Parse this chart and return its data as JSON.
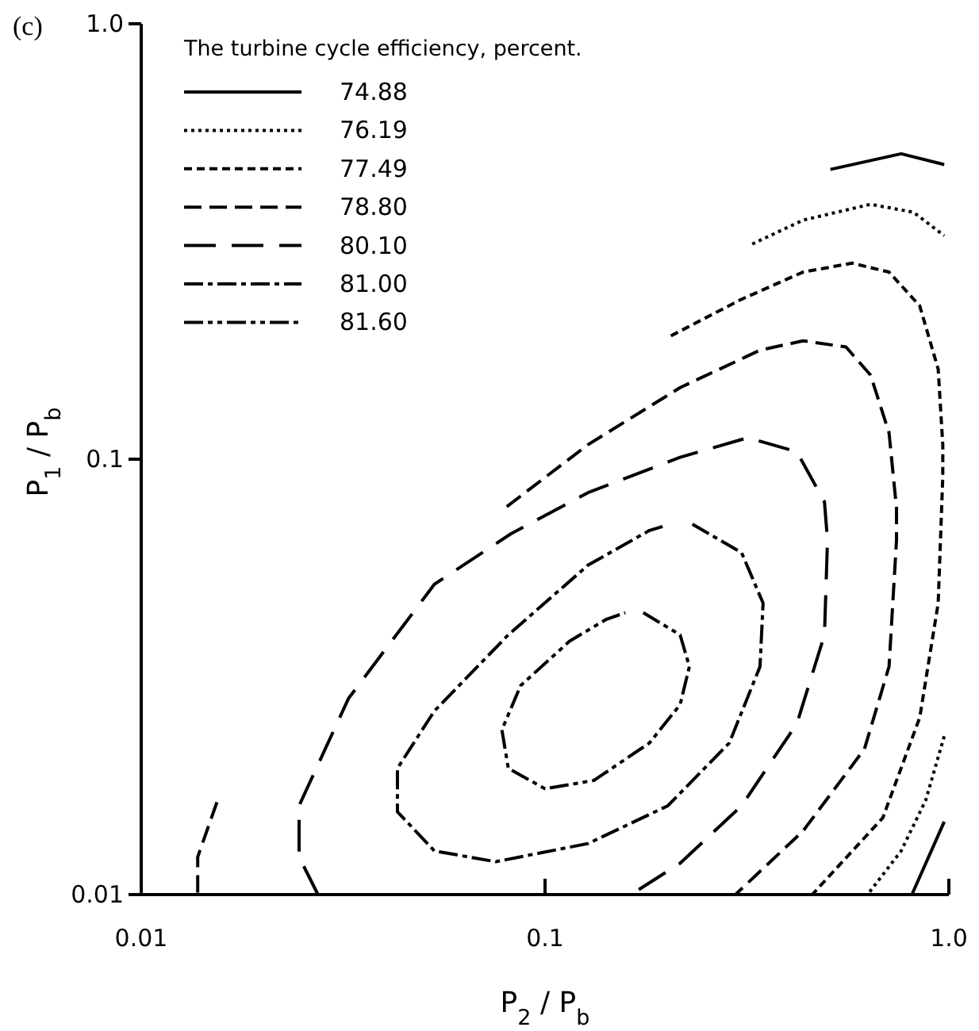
{
  "chart_data": {
    "type": "line",
    "xlabel": "P$_{2}$ / P$_{b}$",
    "ylabel": "P$_{1}$ / P$_{b}$",
    "legend_title": "The turbine cycle efficiency, percent.",
    "legend": "top left",
    "log": "xy",
    "grid": false,
    "marker": "none",
    "xlim": [
      0.01,
      1
    ],
    "ylim": [
      0.01,
      1
    ],
    "xticks": [
      0.01,
      0.1,
      {
        "value": 1,
        "label": "1.0"
      }
    ],
    "yticks": [
      0.01,
      0.1,
      {
        "value": 1,
        "label": "1.0"
      }
    ],
    "annotations": [
      "(c)"
    ],
    "series": [
      {
        "name": "74.88",
        "color": "#000000",
        "line_style": "solid",
        "x": [
          0.509,
          0.762,
          0.974,
          null,
          0.974,
          0.81
        ],
        "values": [
          0.463,
          0.503,
          0.475,
          null,
          0.0147,
          0.01
        ]
      },
      {
        "name": "76.19",
        "color": "#000000",
        "line_style": "dotted",
        "x": [
          0.326,
          0.4355,
          0.64,
          0.818,
          0.974,
          null,
          0.974,
          0.877,
          0.762,
          0.629
        ],
        "values": [
          0.312,
          0.354,
          0.385,
          0.369,
          0.326,
          null,
          0.0231,
          0.0165,
          0.0126,
          0.01
        ]
      },
      {
        "name": "77.49",
        "color": "#000000",
        "line_style": "dashed",
        "x": [
          0.205,
          0.3067,
          0.4355,
          0.576,
          0.711,
          0.847,
          0.941,
          0.966,
          0.966,
          0.941,
          0.847,
          0.686,
          0.4588
        ],
        "values": [
          0.192,
          0.233,
          0.269,
          0.282,
          0.269,
          0.225,
          0.161,
          0.108,
          0.0912,
          0.0467,
          0.0255,
          0.015,
          0.01
        ]
      },
      {
        "name": "78.80",
        "color": "#000000",
        "line_style": "longdashed",
        "x": [
          0.0154,
          0.0138,
          0.0138,
          null,
          0.0804,
          0.1278,
          0.216,
          0.3407,
          0.4355,
          0.5563,
          0.64,
          0.711,
          0.742,
          0.742,
          0.711,
          0.618,
          0.4355,
          0.296
        ],
        "values": [
          0.0163,
          0.0122,
          0.01,
          null,
          0.0778,
          0.108,
          0.146,
          0.178,
          0.187,
          0.181,
          0.156,
          0.115,
          0.0771,
          0.0652,
          0.0334,
          0.0216,
          0.014,
          0.01
        ]
      },
      {
        "name": "80.10",
        "color": "#000000",
        "line_style": "longerdashed",
        "x": [
          0.0274,
          0.0246,
          0.0246,
          0.0326,
          0.0532,
          0.0825,
          0.1278,
          0.216,
          0.3177,
          0.4204,
          0.492,
          0.5006,
          0.492,
          0.4204,
          0.3067,
          0.216,
          0.1633
        ],
        "values": [
          0.01,
          0.0122,
          0.016,
          0.0282,
          0.0516,
          0.0675,
          0.0838,
          0.101,
          0.112,
          0.104,
          0.0798,
          0.0652,
          0.0395,
          0.0247,
          0.016,
          0.0118,
          0.01
        ]
      },
      {
        "name": "81.00",
        "color": "#000000",
        "line_style": "dashdot",
        "x": [
          0.2317,
          0.3067,
          0.3467,
          0.3407,
          0.286,
          0.2015,
          0.1278,
          0.0755,
          0.0532,
          0.0431,
          0.0431,
          0.0532,
          0.0811,
          0.1278,
          0.1814,
          0.2
        ],
        "values": [
          0.0709,
          0.061,
          0.0467,
          0.0334,
          0.0223,
          0.016,
          0.0131,
          0.0119,
          0.0126,
          0.0155,
          0.0195,
          0.0264,
          0.0395,
          0.0571,
          0.0686,
          0.0705
        ]
      },
      {
        "name": "81.60",
        "color": "#000000",
        "line_style": "dashdotdot",
        "x": [
          0.1751,
          0.216,
          0.2278,
          0.216,
          0.1814,
          0.1323,
          0.1,
          0.0811,
          0.0782,
          0.087,
          0.115,
          0.142,
          0.158
        ],
        "values": [
          0.0444,
          0.0395,
          0.0334,
          0.0273,
          0.0223,
          0.0183,
          0.0175,
          0.0195,
          0.0239,
          0.0302,
          0.0382,
          0.0429,
          0.0444
        ]
      }
    ]
  }
}
